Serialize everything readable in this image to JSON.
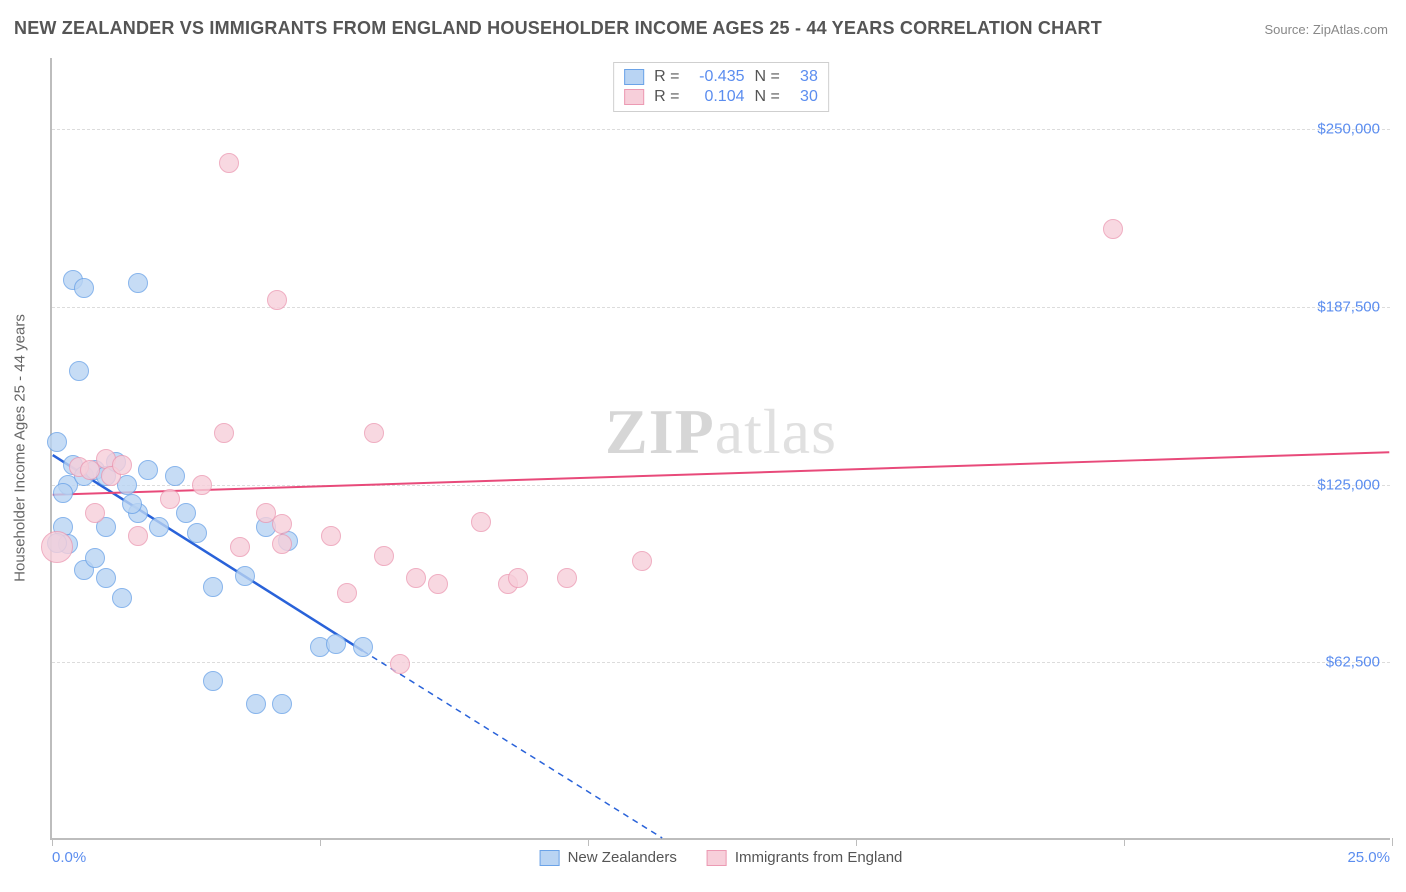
{
  "chart": {
    "type": "scatter",
    "title": "NEW ZEALANDER VS IMMIGRANTS FROM ENGLAND HOUSEHOLDER INCOME AGES 25 - 44 YEARS CORRELATION CHART",
    "source": "Source: ZipAtlas.com",
    "watermark_a": "ZIP",
    "watermark_b": "atlas",
    "background_color": "#ffffff",
    "grid_color": "#dcdcdc",
    "axis_color": "#bdbdbd",
    "text_color": "#555555",
    "value_color": "#5b8def",
    "y_axis_title": "Householder Income Ages 25 - 44 years",
    "xlim": [
      0,
      25
    ],
    "ylim": [
      0,
      275000
    ],
    "x_ticks": [
      0,
      5,
      10,
      15,
      20,
      25
    ],
    "x_tick_labels": {
      "0": "0.0%",
      "25": "25.0%"
    },
    "y_gridlines": [
      62500,
      125000,
      187500,
      250000
    ],
    "y_tick_labels": [
      "$62,500",
      "$125,000",
      "$187,500",
      "$250,000"
    ],
    "correlation_box": {
      "rows": [
        {
          "swatch_fill": "#b9d4f3",
          "swatch_border": "#6ba3e8",
          "r_label": "R =",
          "r_value": "-0.435",
          "n_label": "N =",
          "n_value": "38"
        },
        {
          "swatch_fill": "#f7cfda",
          "swatch_border": "#ec9ab3",
          "r_label": "R =",
          "r_value": "0.104",
          "n_label": "N =",
          "n_value": "30"
        }
      ]
    },
    "legend_bottom": [
      {
        "swatch_fill": "#b9d4f3",
        "swatch_border": "#6ba3e8",
        "label": "New Zealanders"
      },
      {
        "swatch_fill": "#f7cfda",
        "swatch_border": "#ec9ab3",
        "label": "Immigrants from England"
      }
    ],
    "series": [
      {
        "name": "New Zealanders",
        "fill": "#b9d4f3",
        "border": "#6ba3e8",
        "opacity": 0.8,
        "marker_radius": 10,
        "points": [
          [
            0.4,
            197000
          ],
          [
            0.6,
            194000
          ],
          [
            1.6,
            196000
          ],
          [
            0.5,
            165000
          ],
          [
            0.1,
            140000
          ],
          [
            0.3,
            125000
          ],
          [
            0.2,
            122000
          ],
          [
            0.2,
            110000
          ],
          [
            0.3,
            104000
          ],
          [
            0.1,
            104500
          ],
          [
            0.4,
            132000
          ],
          [
            0.6,
            128000
          ],
          [
            0.8,
            130000
          ],
          [
            1.0,
            128000
          ],
          [
            1.2,
            133000
          ],
          [
            1.4,
            125000
          ],
          [
            1.6,
            115000
          ],
          [
            1.0,
            110000
          ],
          [
            0.6,
            95000
          ],
          [
            0.8,
            99000
          ],
          [
            1.0,
            92000
          ],
          [
            1.3,
            85000
          ],
          [
            1.5,
            118000
          ],
          [
            1.8,
            130000
          ],
          [
            2.0,
            110000
          ],
          [
            2.3,
            128000
          ],
          [
            2.5,
            115000
          ],
          [
            2.7,
            108000
          ],
          [
            3.0,
            89000
          ],
          [
            3.6,
            93000
          ],
          [
            4.0,
            110000
          ],
          [
            4.4,
            105000
          ],
          [
            5.0,
            68000
          ],
          [
            5.3,
            69000
          ],
          [
            3.0,
            56000
          ],
          [
            3.8,
            48000
          ],
          [
            4.3,
            48000
          ],
          [
            5.8,
            68000
          ]
        ],
        "trend": {
          "color": "#2962d9",
          "width": 2.5,
          "x1": 0,
          "y1": 135000,
          "x_solid_end": 5.8,
          "y_solid_end": 66000,
          "x2": 11.4,
          "y2": 0
        }
      },
      {
        "name": "Immigrants from England",
        "fill": "#f7cfda",
        "border": "#ec9ab3",
        "opacity": 0.8,
        "marker_radius": 10,
        "points": [
          [
            3.3,
            238000
          ],
          [
            19.8,
            215000
          ],
          [
            4.2,
            190000
          ],
          [
            3.2,
            143000
          ],
          [
            6.0,
            143000
          ],
          [
            0.5,
            131000
          ],
          [
            0.7,
            130000
          ],
          [
            1.0,
            134000
          ],
          [
            1.1,
            128000
          ],
          [
            1.3,
            132000
          ],
          [
            2.2,
            120000
          ],
          [
            3.5,
            103000
          ],
          [
            4.0,
            115000
          ],
          [
            4.3,
            111000
          ],
          [
            4.3,
            104000
          ],
          [
            5.2,
            107000
          ],
          [
            5.5,
            87000
          ],
          [
            6.2,
            100000
          ],
          [
            6.8,
            92000
          ],
          [
            7.2,
            90000
          ],
          [
            8.0,
            112000
          ],
          [
            8.5,
            90000
          ],
          [
            8.7,
            92000
          ],
          [
            9.6,
            92000
          ],
          [
            11.0,
            98000
          ],
          [
            6.5,
            62000
          ],
          [
            0.1,
            103000,
            16
          ],
          [
            0.8,
            115000
          ],
          [
            1.6,
            107000
          ],
          [
            2.8,
            125000
          ]
        ],
        "trend": {
          "color": "#e84a7a",
          "width": 2,
          "x1": 0,
          "y1": 121000,
          "x2": 25,
          "y2": 136000
        }
      }
    ]
  }
}
